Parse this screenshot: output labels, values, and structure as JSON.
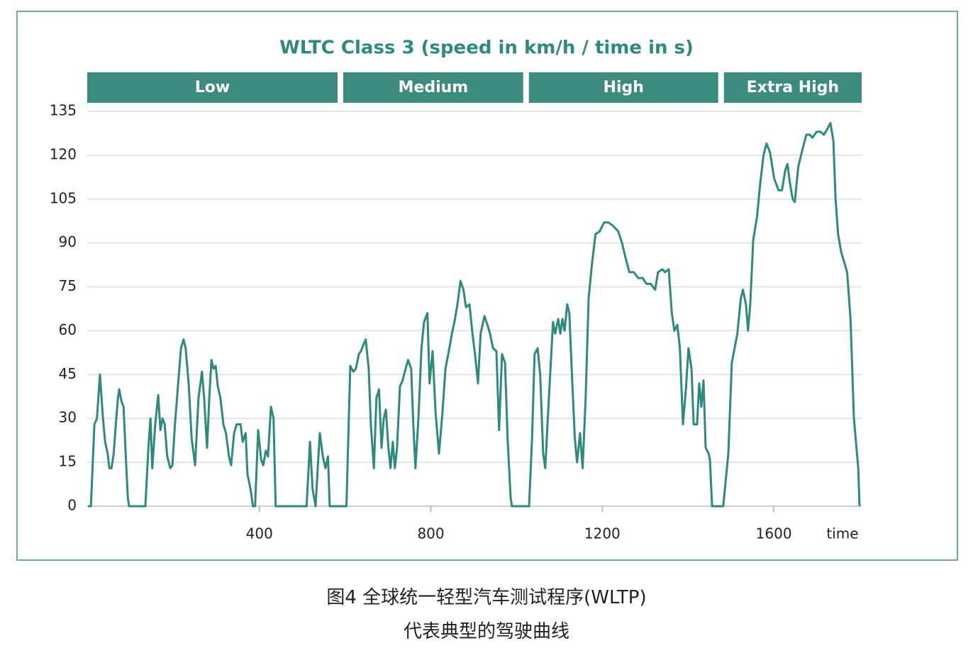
{
  "chart_data": {
    "type": "line",
    "title": "WLTC Class 3 (speed in km/h / time in s)",
    "xlabel": "time",
    "color": "#2f8a7e",
    "phase_color": "#3b8b7f",
    "grid": true,
    "phases": [
      {
        "name": "Low",
        "start": 0,
        "end": 589
      },
      {
        "name": "Medium",
        "start": 589,
        "end": 1022
      },
      {
        "name": "High",
        "start": 1022,
        "end": 1477
      },
      {
        "name": "Extra High",
        "start": 1477,
        "end": 1800
      }
    ],
    "xlim": [
      0,
      1800
    ],
    "xticks": [
      400,
      800,
      1200,
      1600
    ],
    "ylim": [
      0,
      135
    ],
    "yticks": [
      0,
      15,
      30,
      45,
      60,
      75,
      90,
      105,
      120,
      135
    ],
    "x": [
      0,
      7,
      15,
      21,
      28,
      35,
      40,
      46,
      50,
      55,
      60,
      65,
      70,
      73,
      78,
      83,
      88,
      93,
      96,
      134,
      141,
      146,
      150,
      157,
      164,
      169,
      174,
      179,
      185,
      192,
      197,
      203,
      210,
      217,
      223,
      228,
      235,
      242,
      250,
      258,
      266,
      271,
      278,
      283,
      288,
      293,
      298,
      303,
      309,
      316,
      322,
      329,
      334,
      341,
      347,
      356,
      361,
      368,
      372,
      379,
      385,
      390,
      397,
      404,
      409,
      415,
      420,
      427,
      433,
      438,
      510,
      518,
      524,
      531,
      536,
      541,
      548,
      554,
      560,
      564,
      603,
      612,
      619,
      625,
      632,
      637,
      642,
      648,
      655,
      660,
      667,
      673,
      679,
      685,
      690,
      695,
      701,
      706,
      711,
      716,
      721,
      728,
      734,
      741,
      747,
      754,
      759,
      764,
      771,
      778,
      784,
      792,
      797,
      804,
      811,
      819,
      827,
      834,
      842,
      849,
      855,
      862,
      869,
      876,
      882,
      890,
      897,
      903,
      910,
      916,
      925,
      932,
      938,
      945,
      953,
      959,
      966,
      973,
      979,
      986,
      989,
      1029,
      1036,
      1042,
      1049,
      1055,
      1062,
      1067,
      1072,
      1079,
      1085,
      1090,
      1097,
      1102,
      1107,
      1112,
      1118,
      1123,
      1130,
      1136,
      1141,
      1148,
      1154,
      1161,
      1168,
      1176,
      1184,
      1194,
      1204,
      1214,
      1224,
      1237,
      1246,
      1254,
      1263,
      1273,
      1284,
      1294,
      1303,
      1313,
      1323,
      1330,
      1340,
      1346,
      1355,
      1362,
      1368,
      1375,
      1381,
      1388,
      1395,
      1401,
      1408,
      1413,
      1421,
      1426,
      1431,
      1436,
      1441,
      1448,
      1451,
      1456,
      1482,
      1494,
      1502,
      1515,
      1523,
      1528,
      1535,
      1540,
      1545,
      1552,
      1561,
      1568,
      1576,
      1583,
      1591,
      1601,
      1611,
      1619,
      1627,
      1632,
      1637,
      1644,
      1649,
      1657,
      1667,
      1676,
      1684,
      1690,
      1700,
      1709,
      1717,
      1725,
      1732,
      1739,
      1744,
      1750,
      1757,
      1771,
      1779,
      1787,
      1797,
      1800
    ],
    "values": [
      0,
      0,
      28,
      30,
      45,
      30,
      22,
      18,
      13,
      13,
      18,
      28,
      37,
      40,
      36,
      34,
      18,
      3,
      0,
      0,
      20,
      30,
      13,
      28,
      38,
      26,
      30,
      28,
      17,
      13,
      14,
      28,
      41,
      54,
      57,
      54,
      42,
      23,
      14,
      37,
      46,
      37,
      20,
      37,
      50,
      47,
      48,
      41,
      37,
      28,
      25,
      17,
      14,
      25,
      28,
      28,
      22,
      25,
      11,
      6,
      0,
      0,
      26,
      16,
      14,
      19,
      17,
      34,
      30,
      0,
      0,
      22,
      6,
      0,
      13,
      25,
      17,
      13,
      17,
      0,
      0,
      48,
      46,
      47,
      52,
      53,
      55,
      57,
      47,
      28,
      13,
      37,
      40,
      20,
      30,
      33,
      20,
      13,
      22,
      13,
      20,
      41,
      43,
      47,
      50,
      47,
      28,
      13,
      30,
      54,
      63,
      66,
      42,
      53,
      32,
      18,
      32,
      47,
      53,
      59,
      63,
      69,
      77,
      74,
      68,
      69,
      59,
      52,
      42,
      59,
      65,
      62,
      59,
      54,
      53,
      26,
      52,
      49,
      23,
      3,
      0,
      0,
      23,
      52,
      54,
      45,
      18,
      13,
      28,
      47,
      63,
      59,
      64,
      59,
      64,
      60,
      69,
      66,
      42,
      23,
      15,
      25,
      13,
      37,
      71,
      83,
      93,
      94,
      97,
      97,
      96,
      94,
      90,
      85,
      80,
      80,
      78,
      78,
      76,
      76,
      74,
      80,
      81,
      80,
      81,
      66,
      60,
      62,
      54,
      28,
      40,
      54,
      47,
      28,
      28,
      42,
      34,
      43,
      20,
      18,
      16,
      0,
      0,
      18,
      49,
      59,
      71,
      74,
      69,
      60,
      69,
      91,
      99,
      110,
      120,
      124,
      121,
      112,
      108,
      108,
      115,
      117,
      111,
      105,
      104,
      116,
      122,
      127,
      127,
      126,
      128,
      128,
      127,
      129,
      131,
      125,
      105,
      93,
      87,
      80,
      64,
      30,
      13,
      0
    ]
  },
  "caption": [
    "图4 全球统一轻型汽车测试程序(WLTP)",
    "代表典型的驾驶曲线"
  ]
}
